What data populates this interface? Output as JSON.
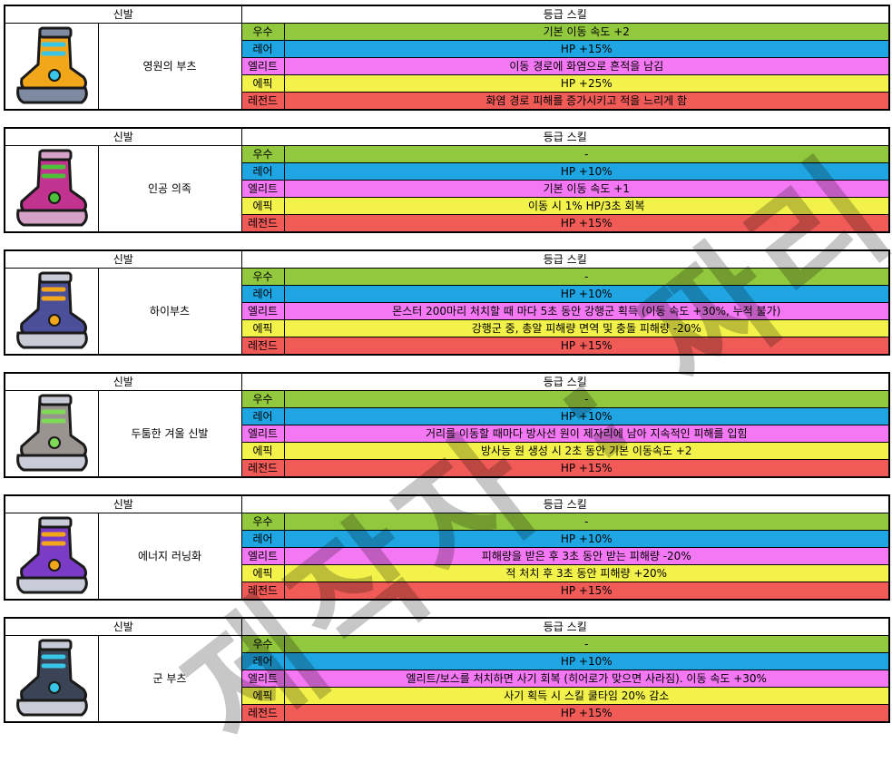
{
  "header": {
    "slot": "신발",
    "skill_title": "등급 스킬"
  },
  "grades": [
    "우수",
    "레어",
    "엘리트",
    "에픽",
    "레전드"
  ],
  "colors": {
    "우수": "#92c83e",
    "레어": "#1fa6e2",
    "엘리트": "#f478f4",
    "에픽": "#f2f24a",
    "레전드": "#f05b57"
  },
  "items": [
    {
      "name": "영원의 부츠",
      "icon": "golden-winged-boot-icon",
      "skills": [
        "기본 이동 속도 +2",
        "HP +15%",
        "이동 경로에 화염으로 흔적을 남김",
        "HP +25%",
        "화염 경로 피해를 증가시키고 적을 느리게 함"
      ]
    },
    {
      "name": "인공 의족",
      "icon": "pink-spiked-boot-icon",
      "skills": [
        "-",
        "HP +10%",
        "기본 이동 속도 +1",
        "이동 시 1% HP/3초 회복",
        "HP +15%"
      ]
    },
    {
      "name": "하이부츠",
      "icon": "purple-high-boot-icon",
      "skills": [
        "-",
        "HP +10%",
        "몬스터 200마리 처치할 때 마다 5초 동안 강행군 획득 (이동 속도 +30%, 누적 불가)",
        "강행군 중, 총알 피해량 면역 및 충돌 피해량 -20%",
        "HP +15%"
      ]
    },
    {
      "name": "두툼한 겨울 신발",
      "icon": "grey-winter-boot-icon",
      "skills": [
        "-",
        "HP +10%",
        "거리를 이동할 때마다 방사선 원이 제자리에 남아 지속적인 피해를 입힘",
        "방사능 원 생성 시 2초 동안 기본 이동속도 +2",
        "HP +15%"
      ]
    },
    {
      "name": "에너지 러닝화",
      "icon": "purple-energy-sneaker-icon",
      "skills": [
        "-",
        "HP +10%",
        "피해량을 받은 후 3초 동안 받는 피해량 -20%",
        "적 처치 후 3초 동안 피해량 +20%",
        "HP +15%"
      ]
    },
    {
      "name": "군 부츠",
      "icon": "blue-military-boot-icon",
      "skills": [
        "-",
        "HP +10%",
        "엘리트/보스를 처치하면 사기 회복 (히어로가 맞으면 사라짐). 이동 속도 +30%",
        "사기 획득 시 스킬 쿨타임 20% 감소",
        "HP +15%"
      ]
    }
  ],
  "watermark": "제작자 : 짜리"
}
